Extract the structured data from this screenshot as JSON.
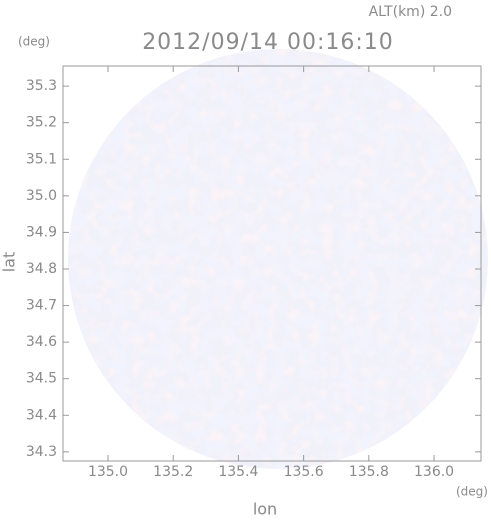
{
  "chart_data": {
    "type": "radar-map",
    "title": "2012/09/14 00:16:10",
    "subtitle": "ALT(km) 2.0",
    "y_unit": "(deg)",
    "x_unit": "(deg)",
    "ylabel": "lat",
    "xlabel": "lon",
    "xlim": [
      134.862,
      136.144
    ],
    "ylim": [
      34.275,
      35.355
    ],
    "xticks": [
      {
        "value": 135,
        "label": "135.0"
      },
      135.2,
      135.4,
      135.6,
      135.8,
      {
        "value": 136,
        "label": "136.0"
      }
    ],
    "yticks": [
      34.3,
      34.4,
      34.5,
      34.6,
      34.7,
      34.8,
      34.9,
      {
        "value": 35,
        "label": "35.0"
      },
      35.1,
      35.2,
      35.3
    ]
  }
}
